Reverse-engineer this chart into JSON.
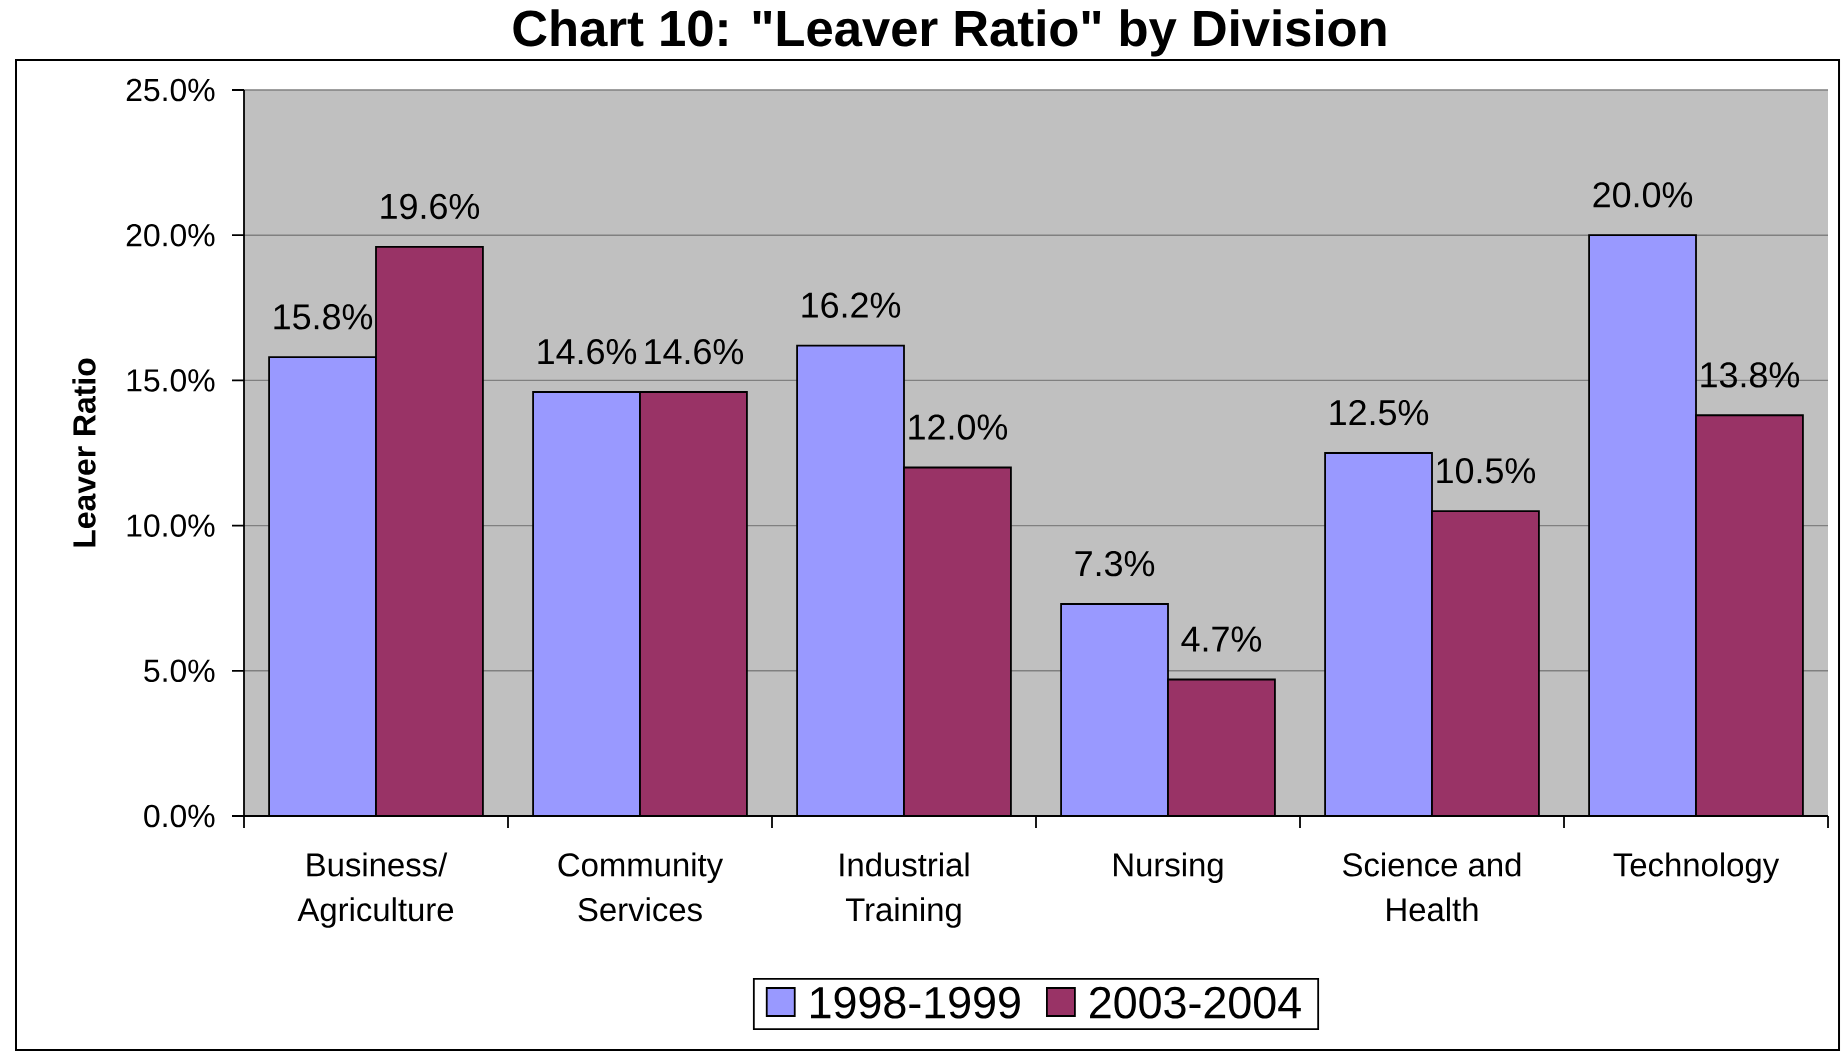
{
  "chart_data": {
    "type": "bar",
    "title": "Chart 10: \"Leaver Ratio\" by Division",
    "ylabel": "Leaver Ratio",
    "categories": [
      "Business/ Agriculture",
      "Community Services",
      "Industrial Training",
      "Nursing",
      "Science and Health",
      "Technology"
    ],
    "series": [
      {
        "name": "1998-1999",
        "color": "#9999ff",
        "values": [
          15.8,
          14.6,
          16.2,
          7.3,
          12.5,
          20.0
        ],
        "value_labels": [
          "15.8%",
          "14.6%",
          "16.2%",
          "7.3%",
          "12.5%",
          "20.0%"
        ]
      },
      {
        "name": "2003-2004",
        "color": "#993366",
        "values": [
          19.6,
          14.6,
          12.0,
          4.7,
          10.5,
          13.8
        ],
        "value_labels": [
          "19.6%",
          "14.6%",
          "12.0%",
          "4.7%",
          "10.5%",
          "13.8%"
        ]
      }
    ],
    "ylim": [
      0,
      25
    ],
    "yticks": [
      {
        "value": 0,
        "label": "0.0%"
      },
      {
        "value": 5,
        "label": "5.0%"
      },
      {
        "value": 10,
        "label": "10.0%"
      },
      {
        "value": 15,
        "label": "15.0%"
      },
      {
        "value": 20,
        "label": "20.0%"
      },
      {
        "value": 25,
        "label": "25.0%"
      }
    ],
    "grid": "y",
    "legend": "bottom"
  }
}
